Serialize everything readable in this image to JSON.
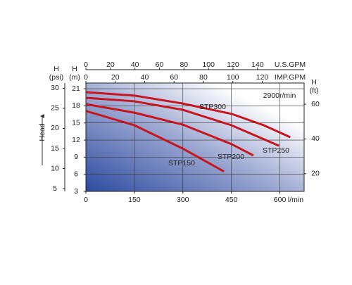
{
  "chart_data": {
    "type": "line",
    "curve_color": "#c8141e",
    "xlim": [
      0,
      675
    ],
    "xticks": [
      0,
      150,
      300,
      450,
      600
    ],
    "x_label": "l/min",
    "ylim": [
      3,
      22
    ],
    "yticks": [
      3,
      6,
      9,
      12,
      15,
      18,
      21
    ],
    "y_label": "H",
    "y_unit": "(m)",
    "psi_axis": {
      "label": "H",
      "unit": "(psi)",
      "lim": [
        4.3,
        31.3
      ],
      "ticks": [
        5,
        10,
        15,
        20,
        25,
        30
      ]
    },
    "ft_axis": {
      "label": "H",
      "unit": "(ft)",
      "lim": [
        9.8,
        72.2
      ],
      "ticks": [
        20,
        40,
        60
      ]
    },
    "us_gpm_axis": {
      "label": "U.S.GPM",
      "lim": [
        0,
        178
      ],
      "ticks": [
        0,
        20,
        40,
        60,
        80,
        100,
        120,
        140
      ]
    },
    "imp_gpm_axis": {
      "label": "IMP.GPM",
      "lim": [
        0,
        148.5
      ],
      "ticks": [
        0,
        20,
        40,
        60,
        80,
        100,
        120
      ]
    },
    "head_label": "Head",
    "speed_label": "2900r/min",
    "grid": true,
    "series": [
      {
        "name": "STP300",
        "x": [
          0,
          150,
          300,
          450,
          550,
          632
        ],
        "values": [
          20.4,
          19.8,
          18.4,
          16.6,
          14.6,
          12.5
        ]
      },
      {
        "name": "STP250",
        "x": [
          0,
          150,
          300,
          450,
          597
        ],
        "values": [
          19.4,
          18.8,
          17.3,
          14.6,
          11
        ]
      },
      {
        "name": "STP200",
        "x": [
          0,
          150,
          300,
          450,
          518
        ],
        "values": [
          18.3,
          16.8,
          14.7,
          11.3,
          9.3
        ]
      },
      {
        "name": "STP150",
        "x": [
          0,
          150,
          300,
          427
        ],
        "values": [
          17.1,
          14.6,
          10.5,
          6.5
        ]
      }
    ]
  }
}
